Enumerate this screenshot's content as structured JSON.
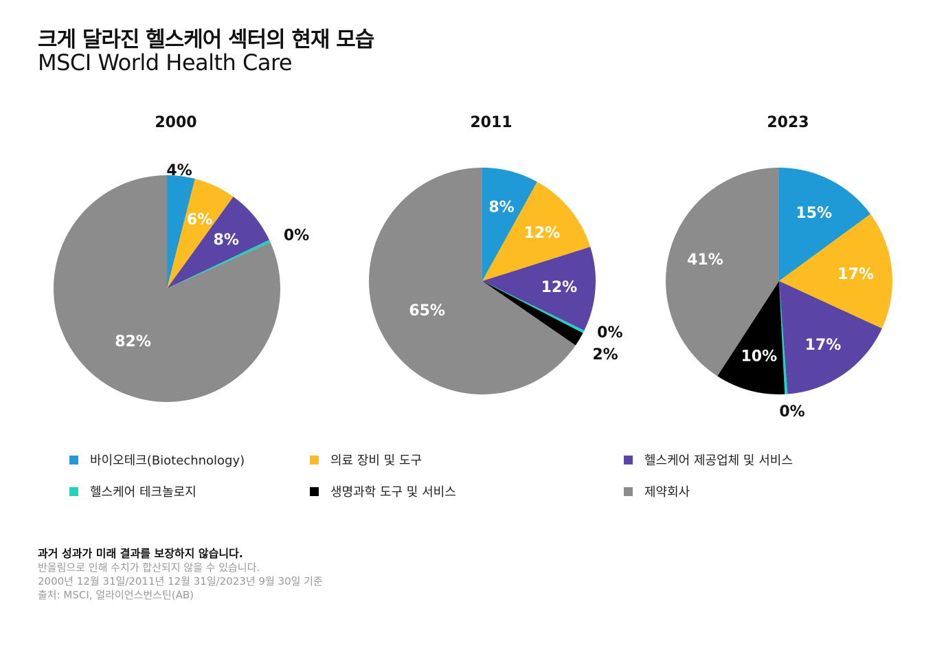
{
  "header": {
    "title": "크게 달라진 헬스케어 섹터의 현재 모습",
    "subtitle": "MSCI World Health Care"
  },
  "chart_data": [
    {
      "type": "pie",
      "title": "2000",
      "categories": [
        "바이오테크(Biotechnology)",
        "의료 장비 및 도구",
        "헬스케어 제공업체 및 서비스",
        "헬스케어 테크놀로지",
        "생명과학 도구 및 서비스",
        "제약회사"
      ],
      "values": [
        4,
        6,
        8,
        0,
        0,
        82
      ],
      "labels": [
        "4%",
        "6%",
        "8%",
        "0%",
        "",
        "82%"
      ]
    },
    {
      "type": "pie",
      "title": "2011",
      "categories": [
        "바이오테크(Biotechnology)",
        "의료 장비 및 도구",
        "헬스케어 제공업체 및 서비스",
        "헬스케어 테크놀로지",
        "생명과학 도구 및 서비스",
        "제약회사"
      ],
      "values": [
        8,
        12,
        12,
        0,
        2,
        65
      ],
      "labels": [
        "8%",
        "12%",
        "12%",
        "0%",
        "2%",
        "65%"
      ]
    },
    {
      "type": "pie",
      "title": "2023",
      "categories": [
        "바이오테크(Biotechnology)",
        "의료 장비 및 도구",
        "헬스케어 제공업체 및 서비스",
        "헬스케어 테크놀로지",
        "생명과학 도구 및 서비스",
        "제약회사"
      ],
      "values": [
        15,
        17,
        17,
        0,
        10,
        41
      ],
      "labels": [
        "15%",
        "17%",
        "17%",
        "0%",
        "10%",
        "41%"
      ]
    }
  ],
  "colors": [
    "#1f9ad6",
    "#fdbd22",
    "#5a45a6",
    "#1fd3c0",
    "#000000",
    "#8c8c8c"
  ],
  "legend": [
    {
      "label": "바이오테크(Biotechnology)",
      "color": "#1f9ad6"
    },
    {
      "label": "의료 장비 및 도구",
      "color": "#fdbd22"
    },
    {
      "label": "헬스케어 제공업체 및 서비스",
      "color": "#5a45a6"
    },
    {
      "label": "헬스케어 테크놀로지",
      "color": "#1fd3c0"
    },
    {
      "label": "생명과학 도구 및 서비스",
      "color": "#000000"
    },
    {
      "label": "제약회사",
      "color": "#8c8c8c"
    }
  ],
  "notes": {
    "disclaimer": "과거 성과가 미래 결과를 보장하지 않습니다.",
    "rounding": "반올림으로 인해 수치가 합산되지 않을 수 있습니다.",
    "dates": "2000년 12월 31일/2011년 12월 31일/2023년 9월 30일 기준",
    "source": "출처: MSCI, 얼라이언스번스틴(AB)"
  }
}
